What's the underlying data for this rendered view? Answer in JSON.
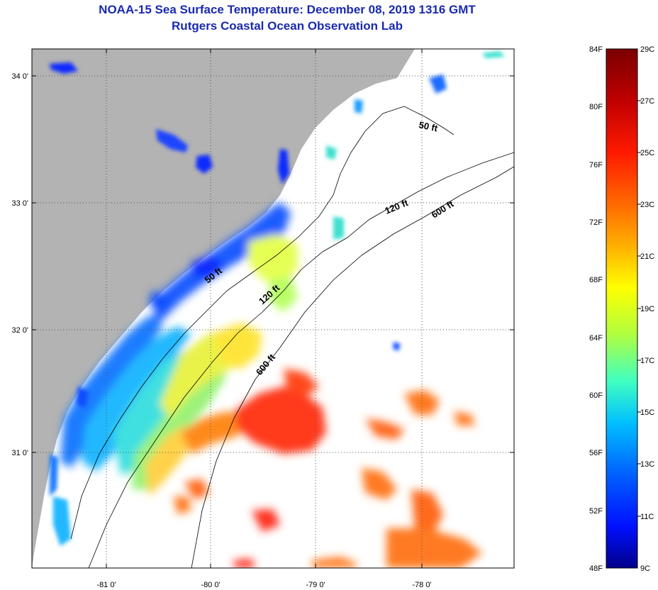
{
  "title": {
    "line1": "NOAA-15 Sea Surface Temperature:  December 08, 2019 1316 GMT",
    "line2": "Rutgers Coastal Ocean Observation Lab"
  },
  "map": {
    "lat_labels": [
      "34 0'",
      "33 0'",
      "32 0'",
      "31 0'"
    ],
    "lon_labels": [
      "-81 0'",
      "-80 0'",
      "-79 0'",
      "-78 0'"
    ],
    "contour_labels": [
      "50 ft",
      "120 ft",
      "600 ft",
      "50 ft",
      "120 ft",
      "600 ft"
    ],
    "colors": {
      "land": "#b3b3b3",
      "ocean_nodata": "#ffffff",
      "grid": "#555555"
    }
  },
  "colorbar": {
    "f_labels": [
      "84F",
      "80F",
      "76F",
      "72F",
      "68F",
      "64F",
      "60F",
      "56F",
      "52F",
      "48F"
    ],
    "c_labels": [
      "29C",
      "27C",
      "25C",
      "23C",
      "21C",
      "19C",
      "17C",
      "15C",
      "13C",
      "11C",
      "9C"
    ],
    "gradient": [
      "#7a0000",
      "#c00000",
      "#ff1a00",
      "#ff6a00",
      "#ffb000",
      "#ffff00",
      "#b0ff40",
      "#40ffc0",
      "#00c0ff",
      "#0060ff",
      "#0010ff",
      "#00008a"
    ]
  }
}
